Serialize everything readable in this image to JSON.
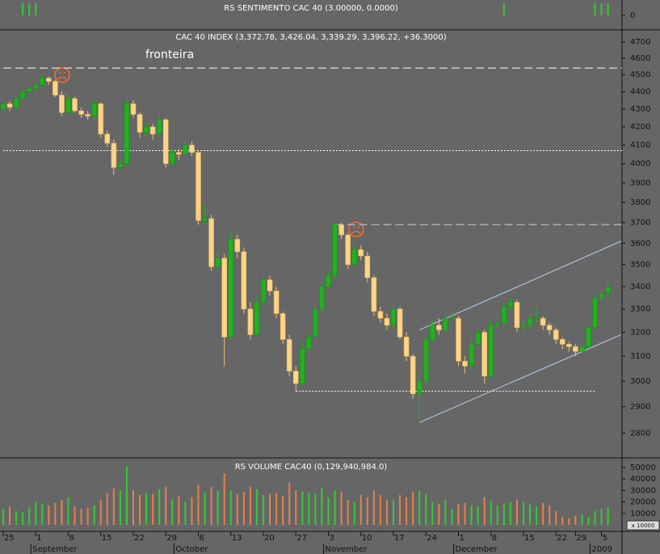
{
  "chart_data": [
    {
      "type": "bar",
      "title": "RS SENTIMENTO CAC 40 (3.00000, 0.0000)",
      "color": "#33cc33",
      "values": [
        0,
        0,
        0,
        3,
        3,
        3,
        0,
        0,
        0,
        0,
        0,
        0,
        0,
        0,
        0,
        0,
        0,
        0,
        0,
        0,
        0,
        0,
        0,
        0,
        0,
        0,
        0,
        0,
        0,
        0,
        0,
        0,
        0,
        0,
        0,
        0,
        0,
        0,
        0,
        0,
        0,
        0,
        0,
        0,
        0,
        0,
        0,
        0,
        0,
        0,
        0,
        0,
        0,
        0,
        0,
        0,
        0,
        0,
        0,
        0,
        0,
        0,
        0,
        0,
        0,
        0,
        0,
        0,
        0,
        0,
        0,
        0,
        0,
        0,
        0,
        0,
        0,
        3,
        0,
        0,
        0,
        0,
        0,
        0,
        0,
        0,
        0,
        0,
        0,
        0,
        0,
        3,
        3,
        3
      ],
      "ylim": [
        -3.6,
        3.8
      ],
      "yticks": [
        0
      ]
    },
    {
      "type": "candlestick",
      "title": "CAC 40 INDEX (3,372.78, 3,426.04, 3,339.29, 3,396.22, +36.3000)",
      "categories": [
        "25",
        null,
        null,
        null,
        null,
        "1",
        null,
        null,
        null,
        null,
        "8",
        null,
        null,
        null,
        null,
        "15",
        null,
        null,
        null,
        null,
        "22",
        null,
        null,
        null,
        null,
        "29",
        null,
        null,
        null,
        null,
        "6",
        null,
        null,
        null,
        null,
        "13",
        null,
        null,
        null,
        null,
        "20",
        null,
        null,
        null,
        null,
        "27",
        null,
        null,
        null,
        null,
        "3",
        null,
        null,
        null,
        null,
        "10",
        null,
        null,
        null,
        null,
        "17",
        null,
        null,
        null,
        null,
        "24",
        null,
        null,
        null,
        null,
        "1",
        null,
        null,
        null,
        null,
        "8",
        null,
        null,
        null,
        null,
        "15",
        null,
        null,
        null,
        null,
        "22",
        null,
        null,
        "29",
        null,
        null,
        null,
        "5",
        null
      ],
      "months": [
        "September",
        "October",
        "November",
        "December",
        "2009"
      ],
      "open": [
        4300,
        4330,
        4310,
        4360,
        4400,
        4420,
        4440,
        4480,
        4460,
        4380,
        4280,
        4360,
        4290,
        4270,
        4260,
        4330,
        4160,
        4110,
        3980,
        4000,
        4330,
        4270,
        4170,
        4200,
        4160,
        4240,
        4000,
        4060,
        4050,
        4100,
        4060,
        3710,
        3720,
        3490,
        3530,
        3180,
        3620,
        3560,
        3300,
        3190,
        3330,
        3430,
        3380,
        3280,
        3170,
        3040,
        2990,
        3130,
        3180,
        3300,
        3400,
        3450,
        3690,
        3640,
        3500,
        3570,
        3540,
        3440,
        3290,
        3260,
        3230,
        3300,
        3180,
        3100,
        2950,
        3000,
        3170,
        3230,
        3210,
        3260,
        3260,
        3080,
        3060,
        3150,
        3200,
        3020,
        3230,
        3240,
        3310,
        3330,
        3220,
        3230,
        3260,
        3260,
        3230,
        3210,
        3170,
        3150,
        3140,
        3120,
        3140,
        3220,
        3350,
        3372.78
      ],
      "high": [
        4340,
        4345,
        4375,
        4415,
        4440,
        4460,
        4500,
        4490,
        4470,
        4400,
        4380,
        4370,
        4310,
        4290,
        4350,
        4340,
        4180,
        4130,
        4020,
        4360,
        4350,
        4280,
        4220,
        4220,
        4260,
        4250,
        4080,
        4080,
        4130,
        4120,
        4070,
        3790,
        3740,
        3560,
        3550,
        3660,
        3640,
        3580,
        3330,
        3360,
        3450,
        3450,
        3400,
        3290,
        3190,
        3060,
        3160,
        3200,
        3320,
        3430,
        3470,
        3700,
        3700,
        3650,
        3600,
        3590,
        3560,
        3450,
        3310,
        3280,
        3320,
        3310,
        3200,
        3110,
        3040,
        3190,
        3250,
        3260,
        3280,
        3290,
        3270,
        3100,
        3170,
        3220,
        3210,
        3250,
        3270,
        3330,
        3350,
        3340,
        3250,
        3280,
        3310,
        3270,
        3240,
        3220,
        3180,
        3160,
        3150,
        3150,
        3230,
        3360,
        3380,
        3426.04
      ],
      "low": [
        4280,
        4290,
        4300,
        4350,
        4390,
        4400,
        4420,
        4440,
        4370,
        4260,
        4270,
        4280,
        4250,
        4240,
        4240,
        4140,
        4090,
        3940,
        3960,
        3990,
        4250,
        4140,
        4150,
        4130,
        4140,
        3980,
        3990,
        4020,
        4040,
        4040,
        3690,
        3690,
        3470,
        3470,
        3060,
        3170,
        3530,
        3280,
        3170,
        3180,
        3310,
        3360,
        3260,
        3150,
        3020,
        2960,
        2980,
        3110,
        3170,
        3290,
        3390,
        3440,
        3620,
        3480,
        3490,
        3520,
        3420,
        3270,
        3240,
        3210,
        3210,
        3170,
        3080,
        2930,
        2840,
        2980,
        3160,
        3190,
        3200,
        3240,
        3060,
        3030,
        3040,
        3130,
        2990,
        3010,
        3210,
        3220,
        3300,
        3200,
        3200,
        3210,
        3240,
        3210,
        3190,
        3150,
        3130,
        3120,
        3100,
        3110,
        3130,
        3210,
        3340,
        3339.29
      ],
      "close": [
        4330,
        4310,
        4360,
        4400,
        4420,
        4440,
        4480,
        4460,
        4380,
        4280,
        4360,
        4290,
        4270,
        4260,
        4330,
        4160,
        4110,
        3980,
        4000,
        4330,
        4270,
        4170,
        4200,
        4160,
        4240,
        4000,
        4060,
        4050,
        4100,
        4060,
        3710,
        3720,
        3490,
        3530,
        3180,
        3620,
        3560,
        3300,
        3190,
        3330,
        3430,
        3380,
        3280,
        3170,
        3040,
        2990,
        3130,
        3180,
        3300,
        3400,
        3450,
        3690,
        3640,
        3500,
        3570,
        3540,
        3440,
        3290,
        3260,
        3230,
        3300,
        3180,
        3100,
        2950,
        3000,
        3170,
        3230,
        3210,
        3260,
        3260,
        3080,
        3060,
        3150,
        3200,
        3020,
        3230,
        3240,
        3310,
        3330,
        3220,
        3230,
        3260,
        3260,
        3230,
        3210,
        3170,
        3150,
        3140,
        3120,
        3140,
        3220,
        3350,
        3370,
        3396.22
      ],
      "up_color": "#22b022",
      "down_color": "#ffd488",
      "ylim": [
        2710,
        4775
      ],
      "log_scale": true,
      "yticks": [
        2800,
        2900,
        3000,
        3100,
        3200,
        3300,
        3400,
        3500,
        3600,
        3700,
        3800,
        3900,
        4000,
        4100,
        4200,
        4300,
        4400,
        4500,
        4600,
        4700
      ],
      "annotation": {
        "text": "fronteira",
        "value": 4620
      },
      "hlines": [
        {
          "value": 4540,
          "from": 0,
          "style": "dashed",
          "color": "#ffffff"
        },
        {
          "value": 4070,
          "from": 0,
          "style": "dotted",
          "color": "#ffffff"
        },
        {
          "value": 3690,
          "from": 51,
          "style": "dashed",
          "color": "#c8d4e8"
        },
        {
          "value": 2960,
          "from": 45,
          "to": 91,
          "style": "dotted",
          "color": "#ffffff"
        }
      ],
      "trendlines": [
        {
          "from": [
            64,
            3210
          ],
          "to": [
            95,
            3610
          ],
          "color": "#b8d0f0"
        },
        {
          "from": [
            64,
            2840
          ],
          "to": [
            95,
            3190
          ],
          "color": "#b8d0f0"
        }
      ]
    },
    {
      "type": "bar",
      "title": "RS VOLUME CAC40 (0,129,940,984.0)",
      "unit_note": "x 10000",
      "values": [
        14000,
        16000,
        12000,
        11000,
        15000,
        20000,
        18000,
        17000,
        19000,
        22000,
        24000,
        16000,
        14000,
        15000,
        17000,
        22000,
        28000,
        32000,
        30000,
        51000,
        30000,
        26000,
        28000,
        27000,
        31000,
        33000,
        22000,
        25000,
        20000,
        24000,
        35000,
        28000,
        33000,
        30000,
        45000,
        30000,
        27000,
        29000,
        33000,
        31000,
        26000,
        27000,
        28000,
        25000,
        37000,
        30000,
        29000,
        28000,
        27000,
        32000,
        24000,
        30000,
        29000,
        22000,
        20000,
        26000,
        24000,
        30000,
        26000,
        22000,
        22000,
        26000,
        24000,
        29000,
        30000,
        27000,
        20000,
        18000,
        22000,
        14000,
        18000,
        19000,
        17000,
        16000,
        24000,
        21000,
        17000,
        19000,
        20000,
        22000,
        20000,
        18000,
        16000,
        19000,
        17000,
        12000,
        7000,
        6000,
        8000,
        9000,
        7000,
        12000,
        14000,
        15000
      ],
      "up_color": "#33cc33",
      "down_color": "#e8804a",
      "ylim": [
        0,
        58400
      ],
      "yticks": [
        10000,
        20000,
        30000,
        40000,
        50000
      ]
    }
  ]
}
